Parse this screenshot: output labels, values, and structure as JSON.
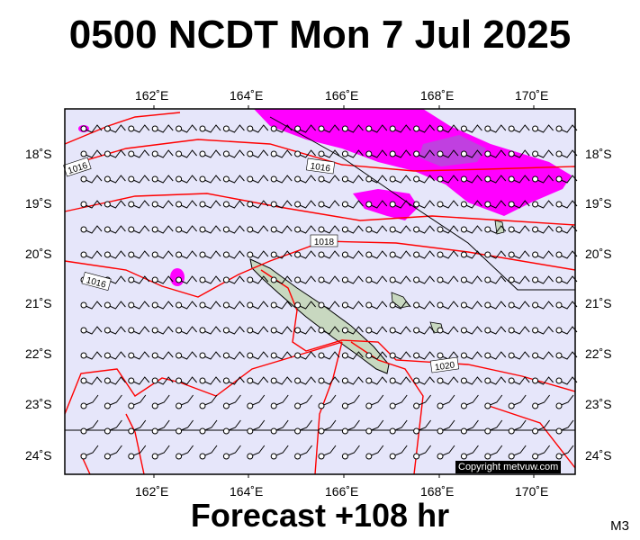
{
  "title": "0500 NCDT Mon 7 Jul 2025",
  "footer": "Forecast +108 hr",
  "model": "M3",
  "copyright": "Copyright metvuw.com",
  "lon_ticks": [
    "162˚E",
    "164˚E",
    "166˚E",
    "168˚E",
    "170˚E"
  ],
  "lat_ticks": [
    "18˚S",
    "19˚S",
    "20˚S",
    "21˚S",
    "22˚S",
    "23˚S",
    "24˚S"
  ],
  "isobar_labels": [
    "1016",
    "1016",
    "1018",
    "1016",
    "1020"
  ],
  "colors": {
    "background": "#e6e6fa",
    "isobar": "#ff0000",
    "precip_heavy": "#ff00ff",
    "precip_core": "#b030e0",
    "land": "#c8d8c0",
    "barb": "#000000"
  },
  "icons": [
    "wind-barb-icon",
    "station-circle-icon"
  ]
}
